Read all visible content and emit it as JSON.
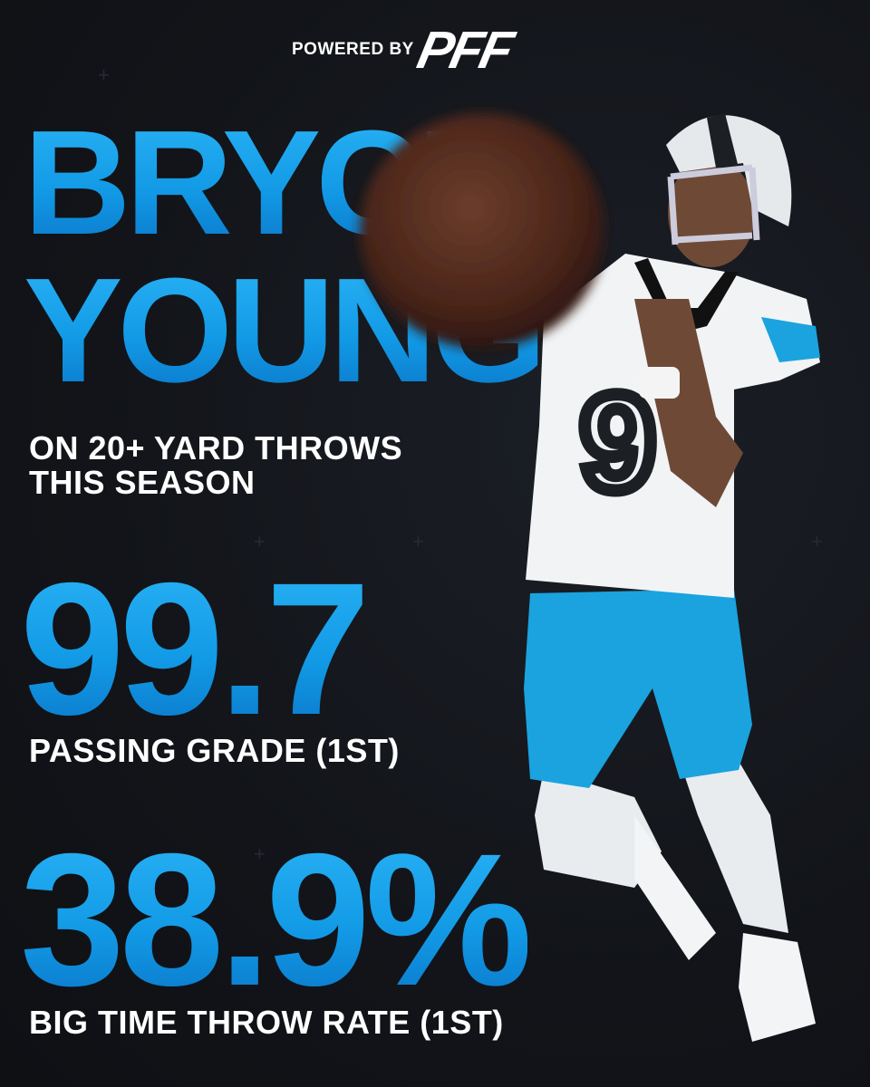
{
  "header": {
    "powered_by": "POWERED BY",
    "logo": "PFF"
  },
  "player": {
    "first_name": "BRYCE",
    "last_name": "YOUNG"
  },
  "subtitle": [
    "ON 20+ YARD THROWS",
    "THIS SEASON"
  ],
  "stats": [
    {
      "value": "99.7",
      "label": "PASSING GRADE (1ST)"
    },
    {
      "value": "38.9%",
      "label": "BIG TIME THROW RATE (1ST)"
    }
  ]
}
